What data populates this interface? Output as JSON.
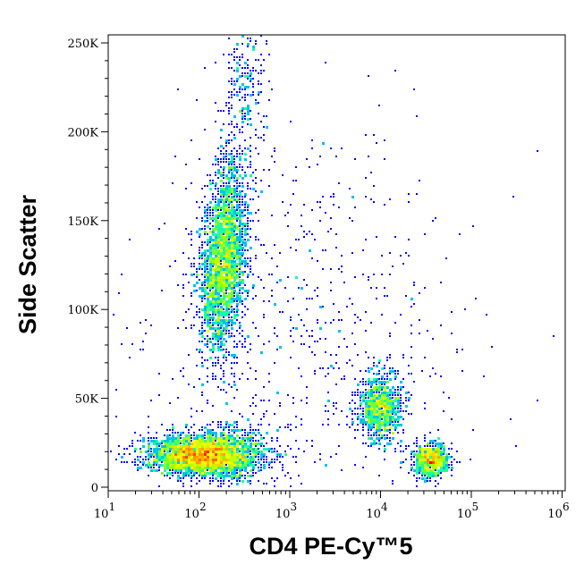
{
  "chart_data": {
    "type": "scatter",
    "subtype": "density-dot-plot",
    "title": "",
    "xlabel": "CD4 PE-Cy™5",
    "ylabel": "Side Scatter",
    "xscale": "log",
    "xlim": [
      8.9,
      1120000
    ],
    "ylim": [
      0,
      255000
    ],
    "x_ticks": [
      {
        "value": 10,
        "base": "10",
        "exp": "1"
      },
      {
        "value": 100,
        "base": "10",
        "exp": "2"
      },
      {
        "value": 1000,
        "base": "10",
        "exp": "3"
      },
      {
        "value": 10000,
        "base": "10",
        "exp": "4"
      },
      {
        "value": 100000,
        "base": "10",
        "exp": "5"
      },
      {
        "value": 1000000,
        "base": "10",
        "exp": "6"
      }
    ],
    "y_ticks": [
      {
        "value": 0,
        "label": "0"
      },
      {
        "value": 50000,
        "label": "50K"
      },
      {
        "value": 100000,
        "label": "100K"
      },
      {
        "value": 150000,
        "label": "150K"
      },
      {
        "value": 200000,
        "label": "200K"
      },
      {
        "value": 250000,
        "label": "250K"
      }
    ],
    "grid": false,
    "colormap": [
      "#0000ff",
      "#00a0ff",
      "#00ffc0",
      "#a0ff00",
      "#ffff00",
      "#ff8000",
      "#ff0000"
    ],
    "populations": [
      {
        "cd4_center": 120,
        "log_sd": 0.32,
        "ssc_center": 18000,
        "ssc_sd": 6000,
        "events": 3200
      },
      {
        "cd4_center": 190,
        "log_sd": 0.13,
        "ssc_center": 130000,
        "ssc_sd": 28000,
        "events": 2600
      },
      {
        "cd4_center": 320,
        "log_sd": 0.12,
        "ssc_center": 225000,
        "ssc_sd": 18000,
        "events": 220
      },
      {
        "cd4_center": 10000,
        "log_sd": 0.13,
        "ssc_center": 45000,
        "ssc_sd": 10000,
        "events": 900
      },
      {
        "cd4_center": 36000,
        "log_sd": 0.1,
        "ssc_center": 15000,
        "ssc_sd": 5000,
        "events": 700
      },
      {
        "cd4_center": 1500,
        "log_sd": 0.9,
        "ssc_center": 90000,
        "ssc_sd": 60000,
        "events": 700
      }
    ]
  }
}
